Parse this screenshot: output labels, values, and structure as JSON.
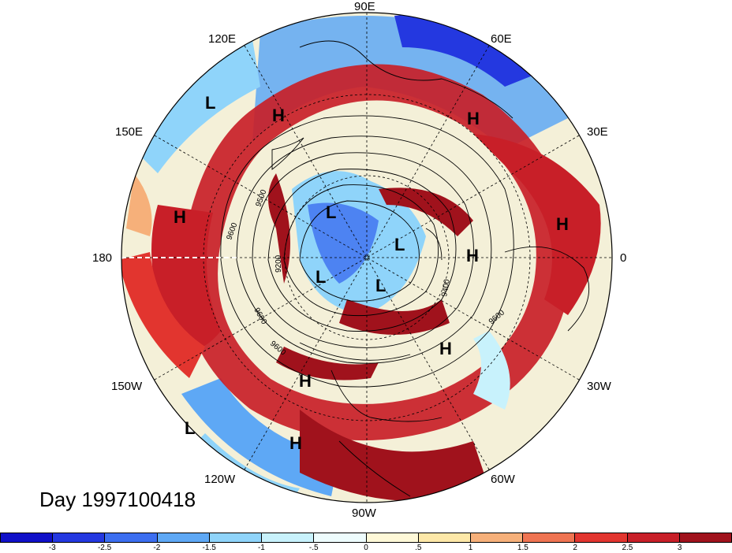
{
  "title": "Day 1997100418",
  "lon_labels": {
    "n90e": "90E",
    "n120e": "120E",
    "n60e": "60E",
    "n150e": "150E",
    "n30e": "30E",
    "n180": "180",
    "n0": "0",
    "n150w": "150W",
    "n30w": "30W",
    "n120w": "120W",
    "n60w": "60W",
    "n90w": "90W"
  },
  "pressure_centers": [
    {
      "label": "L"
    },
    {
      "label": "H"
    },
    {
      "label": "H"
    },
    {
      "label": "H"
    },
    {
      "label": "L"
    },
    {
      "label": "L"
    },
    {
      "label": "H"
    },
    {
      "label": "L"
    },
    {
      "label": "L"
    },
    {
      "label": "H"
    },
    {
      "label": "H"
    },
    {
      "label": "L"
    },
    {
      "label": "H"
    }
  ],
  "contour_labels": [
    "9500",
    "9600",
    "9200",
    "9400",
    "9600",
    "9600",
    "9600"
  ],
  "colorbar": {
    "colors": [
      "#1010c8",
      "#2438e0",
      "#3c6ef0",
      "#5ea8f5",
      "#8fd4fa",
      "#c8f2fc",
      "#eefcfd",
      "#fff9d8",
      "#fde8a8",
      "#f6b07a",
      "#ef7452",
      "#e2352f",
      "#c81f28",
      "#a0121c"
    ],
    "ticks": [
      "-3",
      "-2.5",
      "-2",
      "-1.5",
      "-1",
      "-.5",
      "0",
      ".5",
      "1",
      "1.5",
      "2",
      "2.5",
      "3"
    ]
  }
}
